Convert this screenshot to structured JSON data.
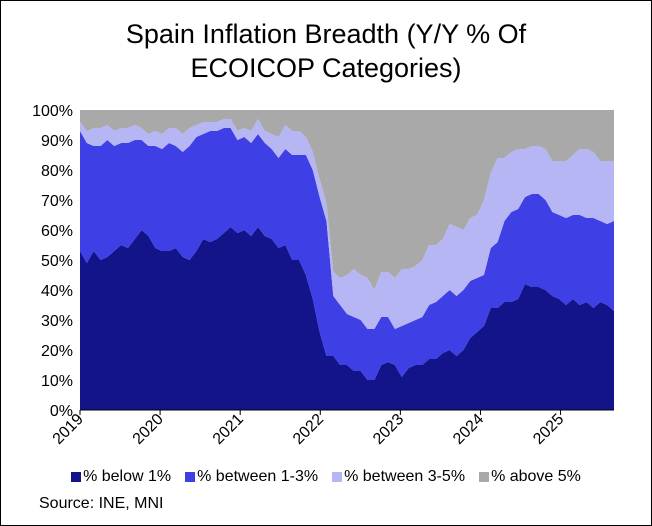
{
  "chart_data": {
    "type": "area",
    "stacked": true,
    "title_line1": "Spain Inflation Breadth (Y/Y % Of",
    "title_line2": "ECOICOP Categories)",
    "xlabel": "",
    "ylabel": "",
    "ylim": [
      0,
      100
    ],
    "y_ticks": [
      "0%",
      "10%",
      "20%",
      "30%",
      "40%",
      "50%",
      "60%",
      "70%",
      "80%",
      "90%",
      "100%"
    ],
    "x_ticks": [
      "2019",
      "2020",
      "2021",
      "2022",
      "2023",
      "2024",
      "2025"
    ],
    "x_range": [
      2019.0,
      2025.667
    ],
    "months_per_point": 1,
    "legend_position": "bottom",
    "source": "Source: INE, MNI",
    "series": [
      {
        "name": "% below 1%",
        "color": "#13138a",
        "values": [
          53,
          49,
          53,
          50,
          51,
          53,
          55,
          54,
          57,
          60,
          58,
          54,
          53,
          53,
          54,
          51,
          50,
          53,
          57,
          56,
          57,
          59,
          61,
          59,
          60,
          58,
          61,
          58,
          57,
          54,
          55,
          50,
          50,
          45,
          37,
          26,
          18,
          18,
          15,
          15,
          13,
          13,
          10,
          10,
          15,
          16,
          15,
          11,
          14,
          15,
          15,
          17,
          17,
          19,
          20,
          18,
          20,
          24,
          26,
          28,
          34,
          34,
          36,
          36,
          37,
          42,
          41,
          41,
          40,
          38,
          37,
          35,
          37,
          35,
          36,
          34,
          36,
          35,
          33
        ]
      },
      {
        "name": "% between 1-3%",
        "color": "#3f3fe6",
        "values": [
          40,
          40,
          35,
          38,
          39,
          35,
          34,
          35,
          33,
          30,
          30,
          34,
          34,
          36,
          34,
          35,
          38,
          38,
          35,
          37,
          36,
          35,
          33,
          31,
          31,
          31,
          31,
          31,
          30,
          30,
          32,
          35,
          35,
          40,
          43,
          45,
          45,
          20,
          20,
          17,
          18,
          17,
          17,
          17,
          16,
          15,
          12,
          17,
          15,
          15,
          16,
          18,
          19,
          19,
          20,
          20,
          20,
          19,
          18,
          17,
          20,
          22,
          27,
          30,
          30,
          29,
          31,
          31,
          30,
          28,
          28,
          29,
          28,
          30,
          28,
          30,
          27,
          27,
          30
        ]
      },
      {
        "name": "% between 3-5%",
        "color": "#b6b6f4",
        "values": [
          3,
          4,
          6,
          6,
          5,
          5,
          5,
          5,
          5,
          4,
          4,
          5,
          5,
          5,
          6,
          6,
          6,
          4,
          4,
          3,
          3,
          3,
          3,
          3,
          3,
          4,
          5,
          4,
          5,
          7,
          8,
          8,
          8,
          6,
          6,
          6,
          6,
          8,
          9,
          13,
          16,
          15,
          17,
          13,
          15,
          15,
          17,
          19,
          18,
          18,
          19,
          20,
          19,
          19,
          22,
          23,
          20,
          21,
          21,
          25,
          25,
          28,
          21,
          20,
          20,
          16,
          16,
          16,
          17,
          17,
          18,
          19,
          20,
          22,
          23,
          22,
          20,
          21,
          20
        ]
      },
      {
        "name": "% above 5%",
        "color": "#a9a9a9",
        "values": [
          4,
          7,
          6,
          6,
          5,
          7,
          6,
          6,
          5,
          6,
          8,
          7,
          8,
          6,
          6,
          8,
          6,
          5,
          4,
          4,
          4,
          3,
          3,
          7,
          6,
          7,
          3,
          7,
          8,
          9,
          5,
          7,
          7,
          9,
          14,
          23,
          31,
          54,
          56,
          55,
          53,
          55,
          56,
          60,
          54,
          54,
          56,
          53,
          53,
          52,
          50,
          45,
          45,
          43,
          38,
          39,
          40,
          36,
          35,
          30,
          21,
          16,
          16,
          14,
          13,
          13,
          12,
          12,
          13,
          17,
          17,
          17,
          15,
          13,
          13,
          14,
          17,
          17,
          17
        ]
      }
    ]
  }
}
